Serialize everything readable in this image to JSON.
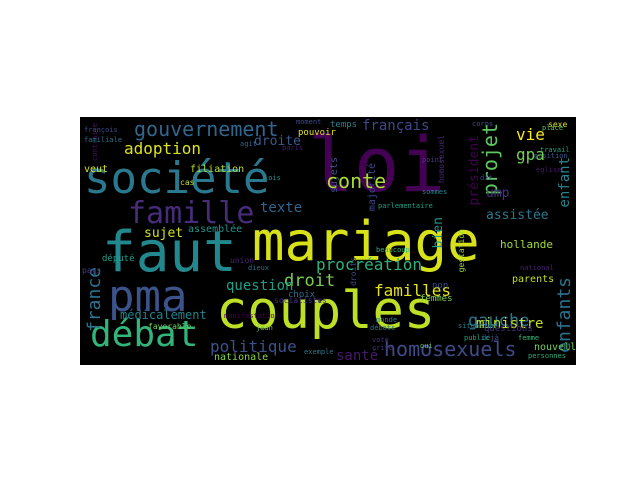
{
  "words": [
    {
      "text": "mariage",
      "color": "#d8e219"
    },
    {
      "text": "loi",
      "color": "#440154"
    },
    {
      "text": "société",
      "color": "#2a788e"
    },
    {
      "text": "faut",
      "color": "#23888e"
    },
    {
      "text": "couples",
      "color": "#bddf26"
    },
    {
      "text": "pma",
      "color": "#3b528b"
    },
    {
      "text": "débat",
      "color": "#31b57b"
    },
    {
      "text": "famille",
      "color": "#472c7a"
    },
    {
      "text": "gouvernement",
      "color": "#31668e"
    },
    {
      "text": "homosexuels",
      "color": "#3e4a89"
    },
    {
      "text": "enfants",
      "color": "#2c728e"
    },
    {
      "text": "projet",
      "color": "#5ec962"
    },
    {
      "text": "gauche",
      "color": "#2a788e"
    },
    {
      "text": "conte",
      "color": "#a8db34"
    },
    {
      "text": "procréation",
      "color": "#2db27d"
    },
    {
      "text": "droit",
      "color": "#7ad151"
    },
    {
      "text": "familles",
      "color": "#e5e419"
    },
    {
      "text": "adoption",
      "color": "#dde318"
    },
    {
      "text": "politique",
      "color": "#3b528b"
    },
    {
      "text": "question",
      "color": "#1f9e89"
    },
    {
      "text": "texte",
      "color": "#31668e"
    },
    {
      "text": "vie",
      "color": "#fde725"
    },
    {
      "text": "gpa",
      "color": "#75d054"
    },
    {
      "text": "ministre",
      "color": "#c2df23"
    },
    {
      "text": "bien",
      "color": "#1f968b"
    },
    {
      "text": "france",
      "color": "#2c728e"
    },
    {
      "text": "santé",
      "color": "#48186a"
    },
    {
      "text": "français",
      "color": "#3f4889"
    },
    {
      "text": "droite",
      "color": "#38598c"
    },
    {
      "text": "assistée",
      "color": "#2a788e"
    },
    {
      "text": "sujet",
      "color": "#d2e21b"
    },
    {
      "text": "médicalement",
      "color": "#26828e"
    },
    {
      "text": "enfant",
      "color": "#24868e"
    },
    {
      "text": "ump",
      "color": "#463480"
    },
    {
      "text": "hollande",
      "color": "#a0da39"
    },
    {
      "text": "parents",
      "color": "#c0df25"
    },
    {
      "text": "nationale",
      "color": "#89d548"
    },
    {
      "text": "filiation",
      "color": "#b5de2b"
    },
    {
      "text": "nouvelle",
      "color": "#75d054"
    },
    {
      "text": "président",
      "color": "#440154"
    },
    {
      "text": "veut",
      "color": "#dde318"
    },
    {
      "text": "majorité",
      "color": "#3f4889"
    },
    {
      "text": "sujets",
      "color": "#39558c"
    },
    {
      "text": "assemblée",
      "color": "#1f948c"
    },
    {
      "text": "député",
      "color": "#1f9e89"
    },
    {
      "text": "questions",
      "color": "#46337f"
    },
    {
      "text": "choix",
      "color": "#2e6e8e"
    },
    {
      "text": "non",
      "color": "#3b528b"
    },
    {
      "text": "union",
      "color": "#482173"
    },
    {
      "text": "pays",
      "color": "#433e85"
    },
    {
      "text": "favorable",
      "color": "#70cf57"
    },
    {
      "text": "temps",
      "color": "#26828e"
    },
    {
      "text": "pouvoir",
      "color": "#e2e418"
    },
    {
      "text": "moment",
      "color": "#3e4a89"
    },
    {
      "text": "femmes",
      "color": "#7fd34e"
    },
    {
      "text": "gestation",
      "color": "#95d840"
    },
    {
      "text": "socialistes",
      "color": "#46307e"
    },
    {
      "text": "familiale",
      "color": "#2e6f8e"
    },
    {
      "text": "françois",
      "color": "#3d4d8a"
    },
    {
      "text": "cas",
      "color": "#c2df23"
    },
    {
      "text": "paris",
      "color": "#481a6c"
    },
    {
      "text": "lois",
      "color": "#20928c"
    },
    {
      "text": "sexe",
      "color": "#d5e21a"
    },
    {
      "text": "point",
      "color": "#453882"
    },
    {
      "text": "déjà",
      "color": "#3a548c"
    },
    {
      "text": "sommes",
      "color": "#25848e"
    },
    {
      "text": "beaucoup",
      "color": "#2fb47c"
    },
    {
      "text": "vote",
      "color": "#482979"
    },
    {
      "text": "dieux",
      "color": "#2d708e"
    },
    {
      "text": "jean",
      "color": "#5ec962"
    },
    {
      "text": "crise",
      "color": "#472e7c"
    },
    {
      "text": "travail",
      "color": "#21a585"
    },
    {
      "text": "place",
      "color": "#52c569"
    },
    {
      "text": "position",
      "color": "#39568c"
    },
    {
      "text": "parlementaire",
      "color": "#1fa088"
    },
    {
      "text": "homosexuel",
      "color": "#482576"
    },
    {
      "text": "corps",
      "color": "#3b528b"
    },
    {
      "text": "personnes",
      "color": "#29af7f"
    },
    {
      "text": "monde",
      "color": "#26818e"
    },
    {
      "text": "femme",
      "color": "#35b779"
    },
    {
      "text": "église",
      "color": "#481467"
    },
    {
      "text": "droits",
      "color": "#404688"
    },
    {
      "text": "agit",
      "color": "#32658e"
    },
    {
      "text": "exemple",
      "color": "#2a768e"
    },
    {
      "text": "contraire",
      "color": "#471063"
    },
    {
      "text": "situation",
      "color": "#287d8e"
    },
    {
      "text": "oui",
      "color": "#67cc5c"
    },
    {
      "text": "dit",
      "color": "#3d4e8a"
    },
    {
      "text": "national",
      "color": "#482071"
    },
    {
      "text": "débats",
      "color": "#2d718e"
    },
    {
      "text": "manifestation",
      "color": "#440154"
    },
    {
      "text": "public",
      "color": "#22a785"
    }
  ]
}
